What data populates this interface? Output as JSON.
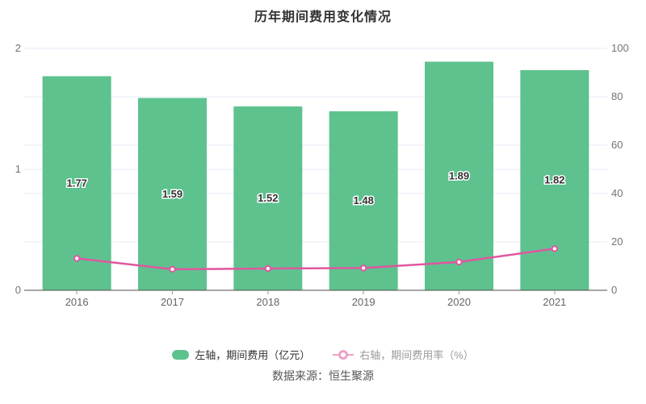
{
  "chart_data": {
    "type": "combo",
    "title": "历年期间费用变化情况",
    "categories": [
      "2016",
      "2017",
      "2018",
      "2019",
      "2020",
      "2021"
    ],
    "series": [
      {
        "name": "左轴，期间费用（亿元）",
        "type": "bar",
        "axis": "left",
        "values": [
          1.77,
          1.59,
          1.52,
          1.48,
          1.89,
          1.82
        ],
        "data_labels": [
          "1.77",
          "1.59",
          "1.52",
          "1.48",
          "1.89",
          "1.82"
        ],
        "color": "#5ec28e"
      },
      {
        "name": "右轴，期间费用率（%）",
        "type": "line",
        "axis": "right",
        "values": [
          13.2,
          8.7,
          9.0,
          9.2,
          11.7,
          17.2
        ],
        "color": "#e0569f"
      }
    ],
    "left_axis": {
      "min": 0,
      "max": 2,
      "ticks": [
        0,
        1,
        2
      ]
    },
    "right_axis": {
      "min": 0,
      "max": 100,
      "ticks": [
        0,
        20,
        40,
        60,
        80,
        100
      ]
    },
    "grid": true,
    "legend_position": "bottom"
  },
  "source": "数据来源：恒生聚源",
  "colors": {
    "bar": "#5ec28e",
    "line": "#e0569f",
    "grid": "#e4ebf4",
    "axis_line": "#4d4d4d"
  }
}
